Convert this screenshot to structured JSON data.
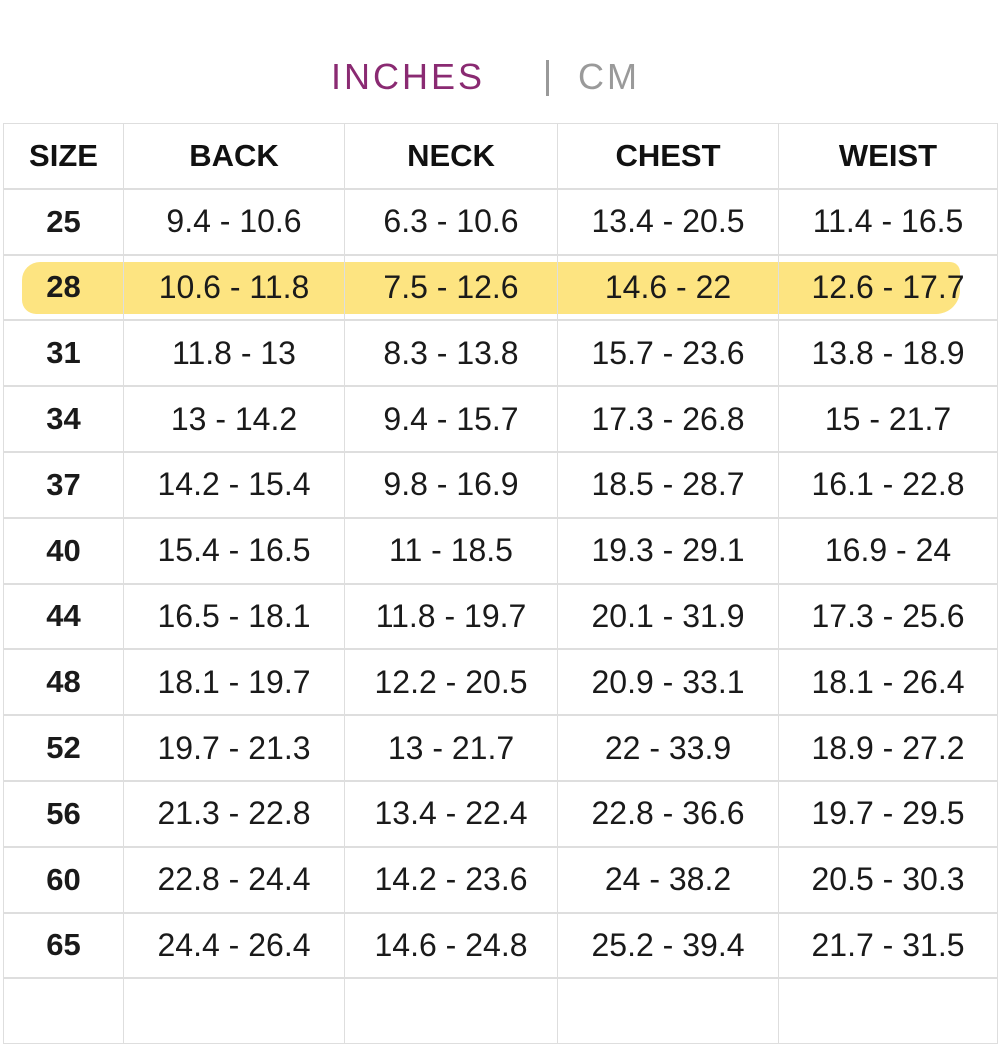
{
  "tabs": {
    "active": "INCHES",
    "inactive": "CM"
  },
  "table": {
    "headers": [
      "SIZE",
      "BACK",
      "NECK",
      "CHEST",
      "WEIST"
    ],
    "highlighted_row": 1,
    "rows": [
      [
        "25",
        "9.4 - 10.6",
        "6.3 - 10.6",
        "13.4 - 20.5",
        "11.4 - 16.5"
      ],
      [
        "28",
        "10.6 - 11.8",
        "7.5 - 12.6",
        "14.6 - 22",
        "12.6 - 17.7"
      ],
      [
        "31",
        "11.8 - 13",
        "8.3 - 13.8",
        "15.7 - 23.6",
        "13.8 - 18.9"
      ],
      [
        "34",
        "13 - 14.2",
        "9.4 - 15.7",
        "17.3 - 26.8",
        "15 - 21.7"
      ],
      [
        "37",
        "14.2 - 15.4",
        "9.8 - 16.9",
        "18.5 - 28.7",
        "16.1 - 22.8"
      ],
      [
        "40",
        "15.4 - 16.5",
        "11 - 18.5",
        "19.3 - 29.1",
        "16.9 - 24"
      ],
      [
        "44",
        "16.5 - 18.1",
        "11.8 - 19.7",
        "20.1 - 31.9",
        "17.3 - 25.6"
      ],
      [
        "48",
        "18.1 - 19.7",
        "12.2 - 20.5",
        "20.9 - 33.1",
        "18.1 - 26.4"
      ],
      [
        "52",
        "19.7 - 21.3",
        "13 - 21.7",
        "22 - 33.9",
        "18.9 - 27.2"
      ],
      [
        "56",
        "21.3 - 22.8",
        "13.4 - 22.4",
        "22.8 - 36.6",
        "19.7 - 29.5"
      ],
      [
        "60",
        "22.8 - 24.4",
        "14.2 - 23.6",
        "24 - 38.2",
        "20.5 - 30.3"
      ],
      [
        "65",
        "24.4 - 26.4",
        "14.6 - 24.8",
        "25.2 - 39.4",
        "21.7 - 31.5"
      ]
    ]
  }
}
